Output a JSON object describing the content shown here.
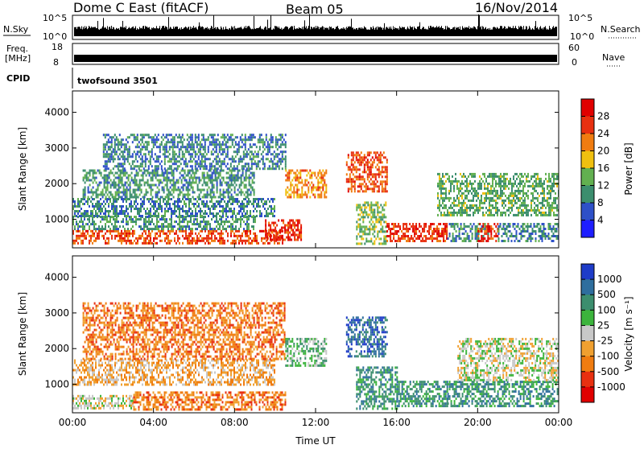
{
  "header": {
    "station": "Dome C East (fitACF)",
    "beam": "Beam 05",
    "date": "16/Nov/2014"
  },
  "aux_panels": {
    "nsky": {
      "label": "N.Sky",
      "top_tick": "10^5",
      "bottom_tick": "10^0"
    },
    "nsearch": {
      "label": "N.Search",
      "top_tick": "10^5",
      "bottom_tick": "10^0"
    },
    "freq": {
      "label_line1": "Freq.",
      "label_line2": "[MHz]",
      "top_tick": "18",
      "bottom_tick": "8"
    },
    "nave": {
      "label": "Nave",
      "top_tick": "60",
      "bottom_tick": "0"
    },
    "cpid": {
      "label": "CPID",
      "value": "twofsound 3501"
    }
  },
  "chart_data": [
    {
      "type": "heatmap",
      "name": "power",
      "xlabel": "Time UT",
      "ylabel": "Slant Range [km]",
      "x_ticks": [
        "00:00",
        "04:00",
        "08:00",
        "12:00",
        "16:00",
        "20:00",
        "00:00"
      ],
      "y_ticks": [
        1000,
        2000,
        3000,
        4000
      ],
      "xlim_hours": [
        0,
        24
      ],
      "ylim_km": [
        200,
        4600
      ],
      "colorbar": {
        "label": "Power [dB]",
        "ticks": [
          4,
          8,
          12,
          16,
          20,
          24,
          28
        ],
        "range": [
          0,
          32
        ],
        "colors": [
          "#1e1eff",
          "#2e50c8",
          "#3c8e6e",
          "#62b050",
          "#f0c010",
          "#f07c10",
          "#e83010",
          "#e00000"
        ]
      },
      "regions": [
        {
          "t": [
            0.0,
            10.4
          ],
          "r": [
            300,
            700
          ],
          "level": 26
        },
        {
          "t": [
            0.0,
            9.0
          ],
          "r": [
            700,
            1100
          ],
          "level": 10
        },
        {
          "t": [
            0.0,
            10.0
          ],
          "r": [
            1100,
            1600
          ],
          "level": 8
        },
        {
          "t": [
            0.5,
            9.0
          ],
          "r": [
            1600,
            2400
          ],
          "level": 10
        },
        {
          "t": [
            1.5,
            10.5
          ],
          "r": [
            2400,
            3400
          ],
          "level": 8
        },
        {
          "t": [
            9.5,
            11.3
          ],
          "r": [
            400,
            1000
          ],
          "level": 28
        },
        {
          "t": [
            10.5,
            12.5
          ],
          "r": [
            1600,
            2400
          ],
          "level": 22
        },
        {
          "t": [
            13.5,
            15.5
          ],
          "r": [
            1800,
            2900
          ],
          "level": 26
        },
        {
          "t": [
            14.0,
            15.5
          ],
          "r": [
            300,
            1500
          ],
          "level": 14
        },
        {
          "t": [
            15.5,
            18.5
          ],
          "r": [
            400,
            900
          ],
          "level": 28
        },
        {
          "t": [
            18.5,
            20.5
          ],
          "r": [
            400,
            900
          ],
          "level": 10
        },
        {
          "t": [
            20.0,
            21.0
          ],
          "r": [
            400,
            900
          ],
          "level": 28
        },
        {
          "t": [
            21.0,
            24.0
          ],
          "r": [
            400,
            900
          ],
          "level": 8
        },
        {
          "t": [
            18.0,
            24.0
          ],
          "r": [
            1100,
            2300
          ],
          "level": 12
        }
      ]
    },
    {
      "type": "heatmap",
      "name": "velocity",
      "xlabel": "Time UT",
      "ylabel": "Slant Range [km]",
      "x_ticks": [
        "00:00",
        "04:00",
        "08:00",
        "12:00",
        "16:00",
        "20:00",
        "00:00"
      ],
      "y_ticks": [
        1000,
        2000,
        3000,
        4000
      ],
      "xlim_hours": [
        0,
        24
      ],
      "ylim_km": [
        200,
        4600
      ],
      "colorbar": {
        "label": "Velocity [m s⁻¹]",
        "ticks": [
          "1000",
          "500",
          "100",
          "25",
          "-25",
          "-100",
          "-500",
          "-1000"
        ],
        "colors": [
          "#1e3cc8",
          "#2e6e9e",
          "#3c8e6e",
          "#3cb43c",
          "#c8c8c8",
          "#f0a030",
          "#f07c10",
          "#e83010",
          "#e00000"
        ]
      },
      "regions": [
        {
          "t": [
            0.0,
            3.0
          ],
          "r": [
            300,
            700
          ],
          "level": 4
        },
        {
          "t": [
            3.0,
            10.5
          ],
          "r": [
            300,
            800
          ],
          "level": 6
        },
        {
          "t": [
            0.0,
            10.0
          ],
          "r": [
            1000,
            1700
          ],
          "level": 5
        },
        {
          "t": [
            0.5,
            10.5
          ],
          "r": [
            1700,
            3300
          ],
          "level": 6
        },
        {
          "t": [
            10.5,
            12.5
          ],
          "r": [
            1500,
            2300
          ],
          "level": 3
        },
        {
          "t": [
            13.5,
            15.5
          ],
          "r": [
            1800,
            2900
          ],
          "level": 1
        },
        {
          "t": [
            14.0,
            16.0
          ],
          "r": [
            300,
            1500
          ],
          "level": 2
        },
        {
          "t": [
            16.0,
            18.5
          ],
          "r": [
            400,
            1100
          ],
          "level": 2
        },
        {
          "t": [
            18.5,
            24.0
          ],
          "r": [
            400,
            1100
          ],
          "level": 2
        },
        {
          "t": [
            19.0,
            24.0
          ],
          "r": [
            1100,
            2300
          ],
          "level": 4
        }
      ]
    }
  ]
}
